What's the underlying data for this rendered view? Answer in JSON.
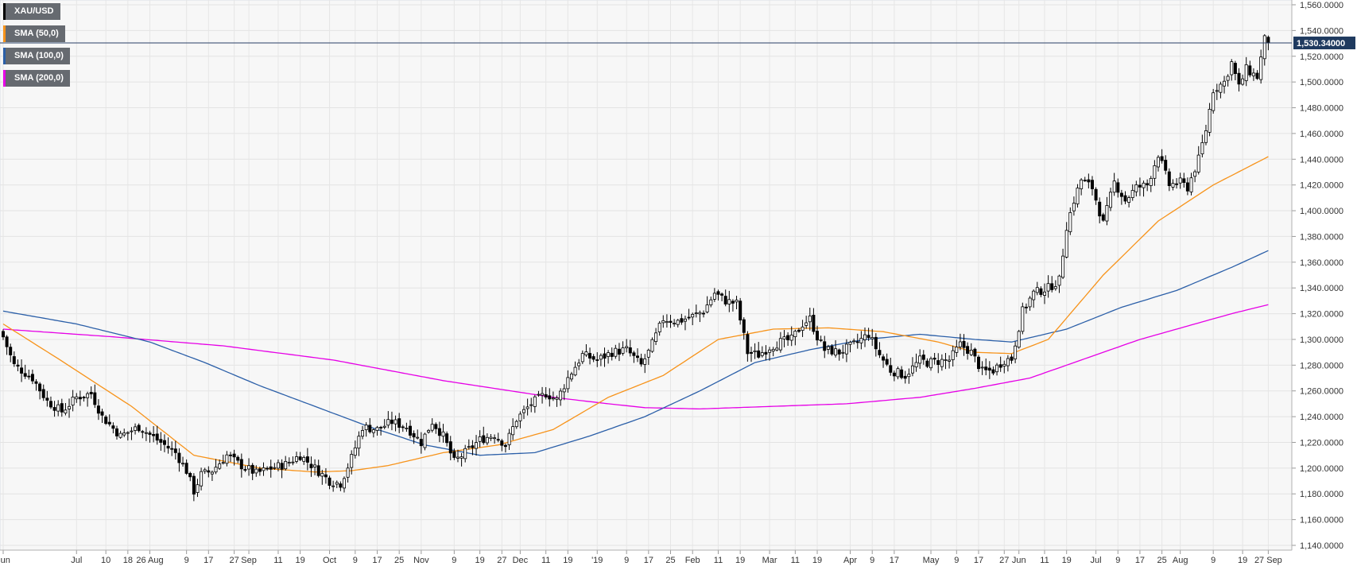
{
  "chart_data": {
    "type": "candlestick",
    "symbol": "XAU/USD",
    "legend": [
      {
        "label": "XAU/USD",
        "color": "#000000"
      },
      {
        "label": "SMA (50,0)",
        "color": "#f7931a"
      },
      {
        "label": "SMA (100,0)",
        "color": "#2b5fa8"
      },
      {
        "label": "SMA (200,0)",
        "color": "#e600e6"
      }
    ],
    "last_price_label": "1,530.34000",
    "last_price": 1530.34,
    "ylim": [
      1140,
      1560
    ],
    "y_ticks": [
      "1,140.0000",
      "1,160.0000",
      "1,180.0000",
      "1,200.0000",
      "1,220.0000",
      "1,240.0000",
      "1,260.0000",
      "1,280.0000",
      "1,300.0000",
      "1,320.0000",
      "1,340.0000",
      "1,360.0000",
      "1,380.0000",
      "1,400.0000",
      "1,420.0000",
      "1,440.0000",
      "1,460.0000",
      "1,480.0000",
      "1,500.0000",
      "1,520.0000",
      "1,540.0000",
      "1,560.0000"
    ],
    "y_tick_values": [
      1140,
      1160,
      1180,
      1200,
      1220,
      1240,
      1260,
      1280,
      1300,
      1320,
      1340,
      1360,
      1380,
      1400,
      1420,
      1440,
      1460,
      1480,
      1500,
      1520,
      1540,
      1560
    ],
    "x_ticks": [
      {
        "label": "Jun",
        "t": 0
      },
      {
        "label": "Jul",
        "t": 20
      },
      {
        "label": "10",
        "t": 28
      },
      {
        "label": "18",
        "t": 34
      },
      {
        "label": "26 Aug",
        "t": 40
      },
      {
        "label": "9",
        "t": 50
      },
      {
        "label": "17",
        "t": 56
      },
      {
        "label": "27",
        "t": 63
      },
      {
        "label": "Sep",
        "t": 67
      },
      {
        "label": "11",
        "t": 75
      },
      {
        "label": "19",
        "t": 81
      },
      {
        "label": "Oct",
        "t": 89
      },
      {
        "label": "9",
        "t": 96
      },
      {
        "label": "17",
        "t": 102
      },
      {
        "label": "25",
        "t": 108
      },
      {
        "label": "Nov",
        "t": 114
      },
      {
        "label": "9",
        "t": 123
      },
      {
        "label": "19",
        "t": 130
      },
      {
        "label": "27",
        "t": 136
      },
      {
        "label": "Dec",
        "t": 141
      },
      {
        "label": "11",
        "t": 148
      },
      {
        "label": "19",
        "t": 154
      },
      {
        "label": "'19",
        "t": 162
      },
      {
        "label": "9",
        "t": 170
      },
      {
        "label": "17",
        "t": 176
      },
      {
        "label": "25",
        "t": 182
      },
      {
        "label": "Feb",
        "t": 188
      },
      {
        "label": "11",
        "t": 195
      },
      {
        "label": "19",
        "t": 201
      },
      {
        "label": "Mar",
        "t": 209
      },
      {
        "label": "11",
        "t": 216
      },
      {
        "label": "19",
        "t": 222
      },
      {
        "label": "Apr",
        "t": 231
      },
      {
        "label": "9",
        "t": 237
      },
      {
        "label": "17",
        "t": 243
      },
      {
        "label": "May",
        "t": 253
      },
      {
        "label": "9",
        "t": 260
      },
      {
        "label": "17",
        "t": 266
      },
      {
        "label": "27",
        "t": 273
      },
      {
        "label": "Jun",
        "t": 277
      },
      {
        "label": "11",
        "t": 284
      },
      {
        "label": "19",
        "t": 290
      },
      {
        "label": "Jul",
        "t": 298
      },
      {
        "label": "9",
        "t": 304
      },
      {
        "label": "17",
        "t": 310
      },
      {
        "label": "25",
        "t": 316
      },
      {
        "label": "Aug",
        "t": 321
      },
      {
        "label": "9",
        "t": 330
      },
      {
        "label": "19",
        "t": 338
      },
      {
        "label": "27 Sep",
        "t": 345
      }
    ],
    "x_count": 352,
    "close_anchors": [
      [
        0,
        1302
      ],
      [
        3,
        1280
      ],
      [
        8,
        1270
      ],
      [
        12,
        1252
      ],
      [
        16,
        1244
      ],
      [
        20,
        1255
      ],
      [
        24,
        1258
      ],
      [
        27,
        1240
      ],
      [
        32,
        1225
      ],
      [
        37,
        1232
      ],
      [
        42,
        1222
      ],
      [
        47,
        1212
      ],
      [
        50,
        1198
      ],
      [
        52,
        1182
      ],
      [
        54,
        1195
      ],
      [
        57,
        1198
      ],
      [
        61,
        1210
      ],
      [
        65,
        1202
      ],
      [
        69,
        1196
      ],
      [
        73,
        1200
      ],
      [
        77,
        1203
      ],
      [
        81,
        1210
      ],
      [
        85,
        1200
      ],
      [
        89,
        1190
      ],
      [
        92,
        1188
      ],
      [
        95,
        1208
      ],
      [
        98,
        1232
      ],
      [
        102,
        1230
      ],
      [
        106,
        1236
      ],
      [
        110,
        1232
      ],
      [
        114,
        1220
      ],
      [
        117,
        1236
      ],
      [
        120,
        1225
      ],
      [
        123,
        1205
      ],
      [
        126,
        1212
      ],
      [
        130,
        1222
      ],
      [
        134,
        1226
      ],
      [
        137,
        1218
      ],
      [
        140,
        1238
      ],
      [
        144,
        1250
      ],
      [
        148,
        1258
      ],
      [
        151,
        1253
      ],
      [
        154,
        1270
      ],
      [
        158,
        1288
      ],
      [
        162,
        1284
      ],
      [
        166,
        1290
      ],
      [
        170,
        1292
      ],
      [
        174,
        1280
      ],
      [
        176,
        1290
      ],
      [
        180,
        1316
      ],
      [
        184,
        1314
      ],
      [
        188,
        1318
      ],
      [
        191,
        1322
      ],
      [
        194,
        1336
      ],
      [
        197,
        1330
      ],
      [
        200,
        1328
      ],
      [
        203,
        1290
      ],
      [
        206,
        1288
      ],
      [
        209,
        1294
      ],
      [
        212,
        1298
      ],
      [
        215,
        1300
      ],
      [
        218,
        1312
      ],
      [
        220,
        1316
      ],
      [
        222,
        1302
      ],
      [
        224,
        1292
      ],
      [
        228,
        1290
      ],
      [
        232,
        1296
      ],
      [
        236,
        1304
      ],
      [
        239,
        1288
      ],
      [
        242,
        1276
      ],
      [
        246,
        1272
      ],
      [
        250,
        1284
      ],
      [
        252,
        1282
      ],
      [
        255,
        1283
      ],
      [
        258,
        1284
      ],
      [
        261,
        1296
      ],
      [
        264,
        1290
      ],
      [
        267,
        1275
      ],
      [
        270,
        1276
      ],
      [
        273,
        1284
      ],
      [
        275,
        1285
      ],
      [
        278,
        1322
      ],
      [
        281,
        1336
      ],
      [
        285,
        1340
      ],
      [
        288,
        1346
      ],
      [
        290,
        1388
      ],
      [
        292,
        1408
      ],
      [
        294,
        1424
      ],
      [
        297,
        1418
      ],
      [
        300,
        1390
      ],
      [
        303,
        1422
      ],
      [
        306,
        1408
      ],
      [
        309,
        1418
      ],
      [
        312,
        1420
      ],
      [
        315,
        1444
      ],
      [
        318,
        1420
      ],
      [
        321,
        1422
      ],
      [
        323,
        1418
      ],
      [
        326,
        1440
      ],
      [
        328,
        1463
      ],
      [
        330,
        1494
      ],
      [
        333,
        1500
      ],
      [
        335,
        1515
      ],
      [
        337,
        1496
      ],
      [
        339,
        1510
      ],
      [
        342,
        1504
      ],
      [
        344,
        1533
      ],
      [
        345,
        1530.34
      ]
    ],
    "sma50": [
      [
        0,
        1312
      ],
      [
        15,
        1285
      ],
      [
        35,
        1248
      ],
      [
        52,
        1210
      ],
      [
        70,
        1200
      ],
      [
        85,
        1197
      ],
      [
        95,
        1198
      ],
      [
        105,
        1202
      ],
      [
        120,
        1212
      ],
      [
        135,
        1218
      ],
      [
        150,
        1230
      ],
      [
        165,
        1255
      ],
      [
        180,
        1272
      ],
      [
        195,
        1300
      ],
      [
        210,
        1308
      ],
      [
        225,
        1309
      ],
      [
        240,
        1306
      ],
      [
        255,
        1298
      ],
      [
        265,
        1290
      ],
      [
        275,
        1289
      ],
      [
        285,
        1300
      ],
      [
        300,
        1350
      ],
      [
        315,
        1392
      ],
      [
        330,
        1420
      ],
      [
        345,
        1442
      ]
    ],
    "sma100": [
      [
        0,
        1322
      ],
      [
        20,
        1312
      ],
      [
        40,
        1298
      ],
      [
        55,
        1282
      ],
      [
        70,
        1264
      ],
      [
        85,
        1248
      ],
      [
        100,
        1232
      ],
      [
        115,
        1218
      ],
      [
        130,
        1210
      ],
      [
        145,
        1212
      ],
      [
        160,
        1225
      ],
      [
        175,
        1240
      ],
      [
        190,
        1260
      ],
      [
        205,
        1282
      ],
      [
        220,
        1292
      ],
      [
        235,
        1300
      ],
      [
        250,
        1304
      ],
      [
        265,
        1300
      ],
      [
        275,
        1298
      ],
      [
        290,
        1308
      ],
      [
        305,
        1325
      ],
      [
        320,
        1338
      ],
      [
        335,
        1356
      ],
      [
        345,
        1369
      ]
    ],
    "sma200": [
      [
        0,
        1308
      ],
      [
        30,
        1302
      ],
      [
        60,
        1295
      ],
      [
        90,
        1284
      ],
      [
        120,
        1268
      ],
      [
        150,
        1255
      ],
      [
        165,
        1250
      ],
      [
        175,
        1247
      ],
      [
        190,
        1246
      ],
      [
        210,
        1248
      ],
      [
        230,
        1250
      ],
      [
        250,
        1255
      ],
      [
        265,
        1262
      ],
      [
        280,
        1270
      ],
      [
        295,
        1285
      ],
      [
        310,
        1300
      ],
      [
        325,
        1312
      ],
      [
        335,
        1320
      ],
      [
        345,
        1327
      ]
    ]
  }
}
